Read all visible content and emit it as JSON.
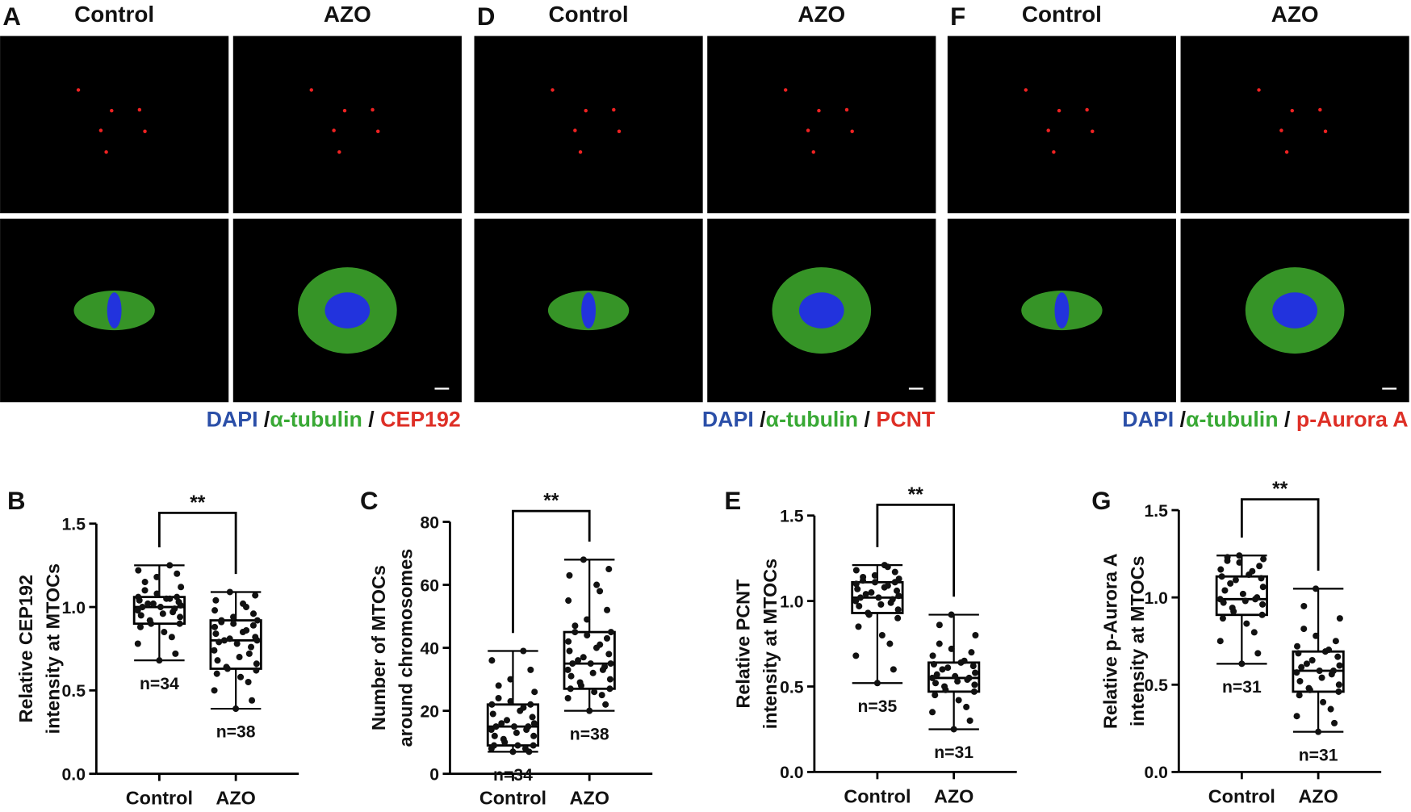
{
  "image_panels": [
    {
      "letter": "A",
      "columns": [
        "Control",
        "AZO"
      ],
      "stain": [
        "DAPI ",
        "/",
        "α-tubulin",
        " / ",
        "CEP192"
      ]
    },
    {
      "letter": "D",
      "columns": [
        "Control",
        "AZO"
      ],
      "stain": [
        "DAPI ",
        "/",
        "α-tubulin",
        " / ",
        "PCNT"
      ]
    },
    {
      "letter": "F",
      "columns": [
        "Control",
        "AZO"
      ],
      "stain": [
        "DAPI ",
        "/",
        "α-tubulin",
        " / ",
        "p-Aurora A"
      ]
    }
  ],
  "chart_data": [
    {
      "type": "box",
      "letter": "B",
      "ylabel": [
        "Relative CEP192",
        "intensity at MTOCs"
      ],
      "categories": [
        "Control",
        "AZO"
      ],
      "ylim": [
        0,
        1.5
      ],
      "yticks": [
        {
          "value": 0,
          "label": "0.0"
        },
        {
          "value": 0.5,
          "label": "0.5"
        },
        {
          "value": 1,
          "label": "1.0"
        },
        {
          "value": 1.5,
          "label": "1.5"
        }
      ],
      "significance": "**",
      "boxes": [
        {
          "min": 0.68,
          "q1": 0.9,
          "median": 1.0,
          "q3": 1.06,
          "max": 1.25,
          "n_label": "n=34",
          "points": [
            0.68,
            0.72,
            0.78,
            0.82,
            0.85,
            0.88,
            0.9,
            0.9,
            0.92,
            0.94,
            0.95,
            0.96,
            0.97,
            0.98,
            0.99,
            1.0,
            1.0,
            1.01,
            1.02,
            1.02,
            1.03,
            1.04,
            1.05,
            1.05,
            1.06,
            1.06,
            1.08,
            1.1,
            1.12,
            1.15,
            1.18,
            1.2,
            1.22,
            1.25
          ]
        },
        {
          "min": 0.39,
          "q1": 0.63,
          "median": 0.8,
          "q3": 0.92,
          "max": 1.09,
          "n_label": "n=38",
          "points": [
            0.39,
            0.44,
            0.5,
            0.55,
            0.58,
            0.6,
            0.62,
            0.63,
            0.64,
            0.66,
            0.68,
            0.7,
            0.72,
            0.74,
            0.76,
            0.78,
            0.79,
            0.8,
            0.8,
            0.81,
            0.82,
            0.84,
            0.85,
            0.86,
            0.88,
            0.89,
            0.9,
            0.91,
            0.92,
            0.92,
            0.94,
            0.96,
            0.98,
            1.0,
            1.02,
            1.04,
            1.07,
            1.09
          ]
        }
      ]
    },
    {
      "type": "box",
      "letter": "C",
      "ylabel": [
        "Number of MTOCs",
        "around chromosomes"
      ],
      "categories": [
        "Control",
        "AZO"
      ],
      "ylim": [
        0,
        80
      ],
      "yticks": [
        0,
        20,
        40,
        60,
        80
      ],
      "significance": "**",
      "boxes": [
        {
          "min": 7,
          "q1": 9,
          "median": 15,
          "q3": 22,
          "max": 39,
          "n_label": "n=34",
          "points": [
            7,
            7,
            8,
            8,
            9,
            9,
            9,
            10,
            11,
            12,
            12,
            13,
            14,
            14,
            15,
            15,
            15,
            16,
            16,
            17,
            18,
            19,
            20,
            21,
            22,
            22,
            23,
            24,
            26,
            28,
            30,
            33,
            36,
            39
          ]
        },
        {
          "min": 20,
          "q1": 27,
          "median": 35,
          "q3": 45,
          "max": 68,
          "n_label": "n=38",
          "points": [
            20,
            22,
            24,
            25,
            26,
            27,
            27,
            28,
            29,
            30,
            31,
            32,
            33,
            33,
            34,
            35,
            35,
            35,
            36,
            37,
            38,
            39,
            40,
            41,
            42,
            43,
            44,
            45,
            45,
            47,
            49,
            52,
            55,
            58,
            60,
            63,
            65,
            68
          ]
        }
      ]
    },
    {
      "type": "box",
      "letter": "E",
      "ylabel": [
        "Relative PCNT",
        "intensity at MTOCs"
      ],
      "categories": [
        "Control",
        "AZO"
      ],
      "ylim": [
        0,
        1.5
      ],
      "yticks": [
        {
          "value": 0,
          "label": "0.0"
        },
        {
          "value": 0.5,
          "label": "0.5"
        },
        {
          "value": 1,
          "label": "1.0"
        },
        {
          "value": 1.5,
          "label": "1.5"
        }
      ],
      "significance": "**",
      "boxes": [
        {
          "min": 0.52,
          "q1": 0.93,
          "median": 1.02,
          "q3": 1.11,
          "max": 1.21,
          "n_label": "n=35",
          "points": [
            0.52,
            0.6,
            0.68,
            0.75,
            0.8,
            0.85,
            0.9,
            0.92,
            0.93,
            0.95,
            0.97,
            0.98,
            0.99,
            1.0,
            1.01,
            1.02,
            1.02,
            1.03,
            1.04,
            1.05,
            1.06,
            1.07,
            1.08,
            1.09,
            1.1,
            1.11,
            1.11,
            1.12,
            1.13,
            1.14,
            1.15,
            1.17,
            1.18,
            1.2,
            1.21
          ]
        },
        {
          "min": 0.25,
          "q1": 0.47,
          "median": 0.55,
          "q3": 0.64,
          "max": 0.92,
          "n_label": "n=31",
          "points": [
            0.25,
            0.3,
            0.35,
            0.38,
            0.42,
            0.45,
            0.47,
            0.48,
            0.5,
            0.51,
            0.52,
            0.53,
            0.54,
            0.55,
            0.55,
            0.56,
            0.57,
            0.58,
            0.6,
            0.61,
            0.62,
            0.63,
            0.64,
            0.65,
            0.68,
            0.7,
            0.72,
            0.75,
            0.8,
            0.86,
            0.92
          ]
        }
      ]
    },
    {
      "type": "box",
      "letter": "G",
      "ylabel": [
        "Relative p-Aurora A",
        "intensity at MTOCs"
      ],
      "categories": [
        "Control",
        "AZO"
      ],
      "ylim": [
        0,
        1.5
      ],
      "yticks": [
        {
          "value": 0,
          "label": "0.0"
        },
        {
          "value": 0.5,
          "label": "0.5"
        },
        {
          "value": 1,
          "label": "1.0"
        },
        {
          "value": 1.5,
          "label": "1.5"
        }
      ],
      "significance": "**",
      "boxes": [
        {
          "min": 0.62,
          "q1": 0.9,
          "median": 0.99,
          "q3": 1.12,
          "max": 1.24,
          "n_label": "n=31",
          "points": [
            0.62,
            0.68,
            0.75,
            0.8,
            0.85,
            0.88,
            0.9,
            0.92,
            0.94,
            0.96,
            0.97,
            0.98,
            0.99,
            0.99,
            1.0,
            1.02,
            1.04,
            1.06,
            1.08,
            1.1,
            1.11,
            1.12,
            1.13,
            1.15,
            1.16,
            1.18,
            1.2,
            1.21,
            1.22,
            1.23,
            1.24
          ]
        },
        {
          "min": 0.23,
          "q1": 0.46,
          "median": 0.58,
          "q3": 0.69,
          "max": 1.05,
          "n_label": "n=31",
          "points": [
            0.23,
            0.28,
            0.32,
            0.36,
            0.4,
            0.44,
            0.46,
            0.47,
            0.48,
            0.5,
            0.52,
            0.54,
            0.56,
            0.57,
            0.58,
            0.58,
            0.6,
            0.61,
            0.62,
            0.64,
            0.66,
            0.68,
            0.69,
            0.7,
            0.72,
            0.75,
            0.78,
            0.82,
            0.88,
            0.95,
            1.05
          ]
        }
      ]
    }
  ]
}
